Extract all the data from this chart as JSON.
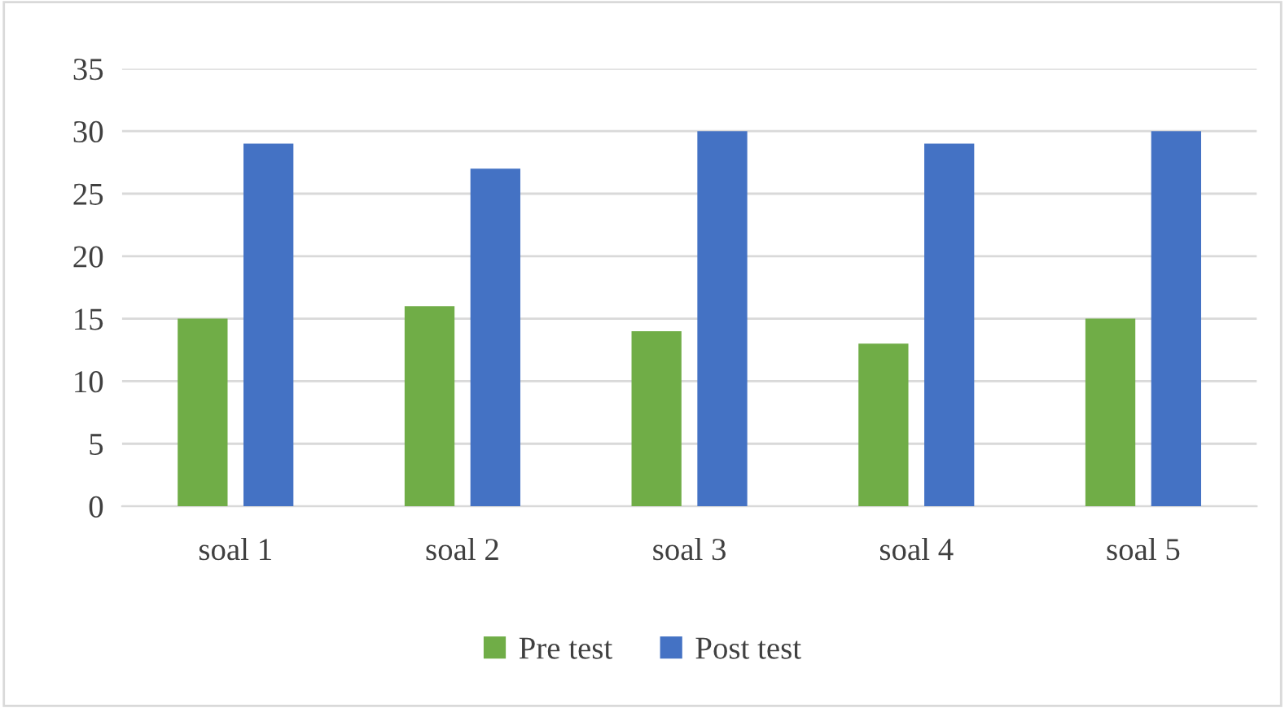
{
  "chart_data": {
    "type": "bar",
    "categories": [
      "soal 1",
      "soal 2",
      "soal 3",
      "soal 4",
      "soal 5"
    ],
    "series": [
      {
        "name": "Pre test",
        "color": "#70ad47",
        "values": [
          15,
          16,
          14,
          13,
          15
        ]
      },
      {
        "name": "Post test",
        "color": "#4472c4",
        "values": [
          29,
          27,
          30,
          29,
          30
        ]
      }
    ],
    "ylim": [
      0,
      35
    ],
    "yticks": [
      0,
      5,
      10,
      15,
      20,
      25,
      30,
      35
    ],
    "grid": "y",
    "legend": "bottom"
  }
}
